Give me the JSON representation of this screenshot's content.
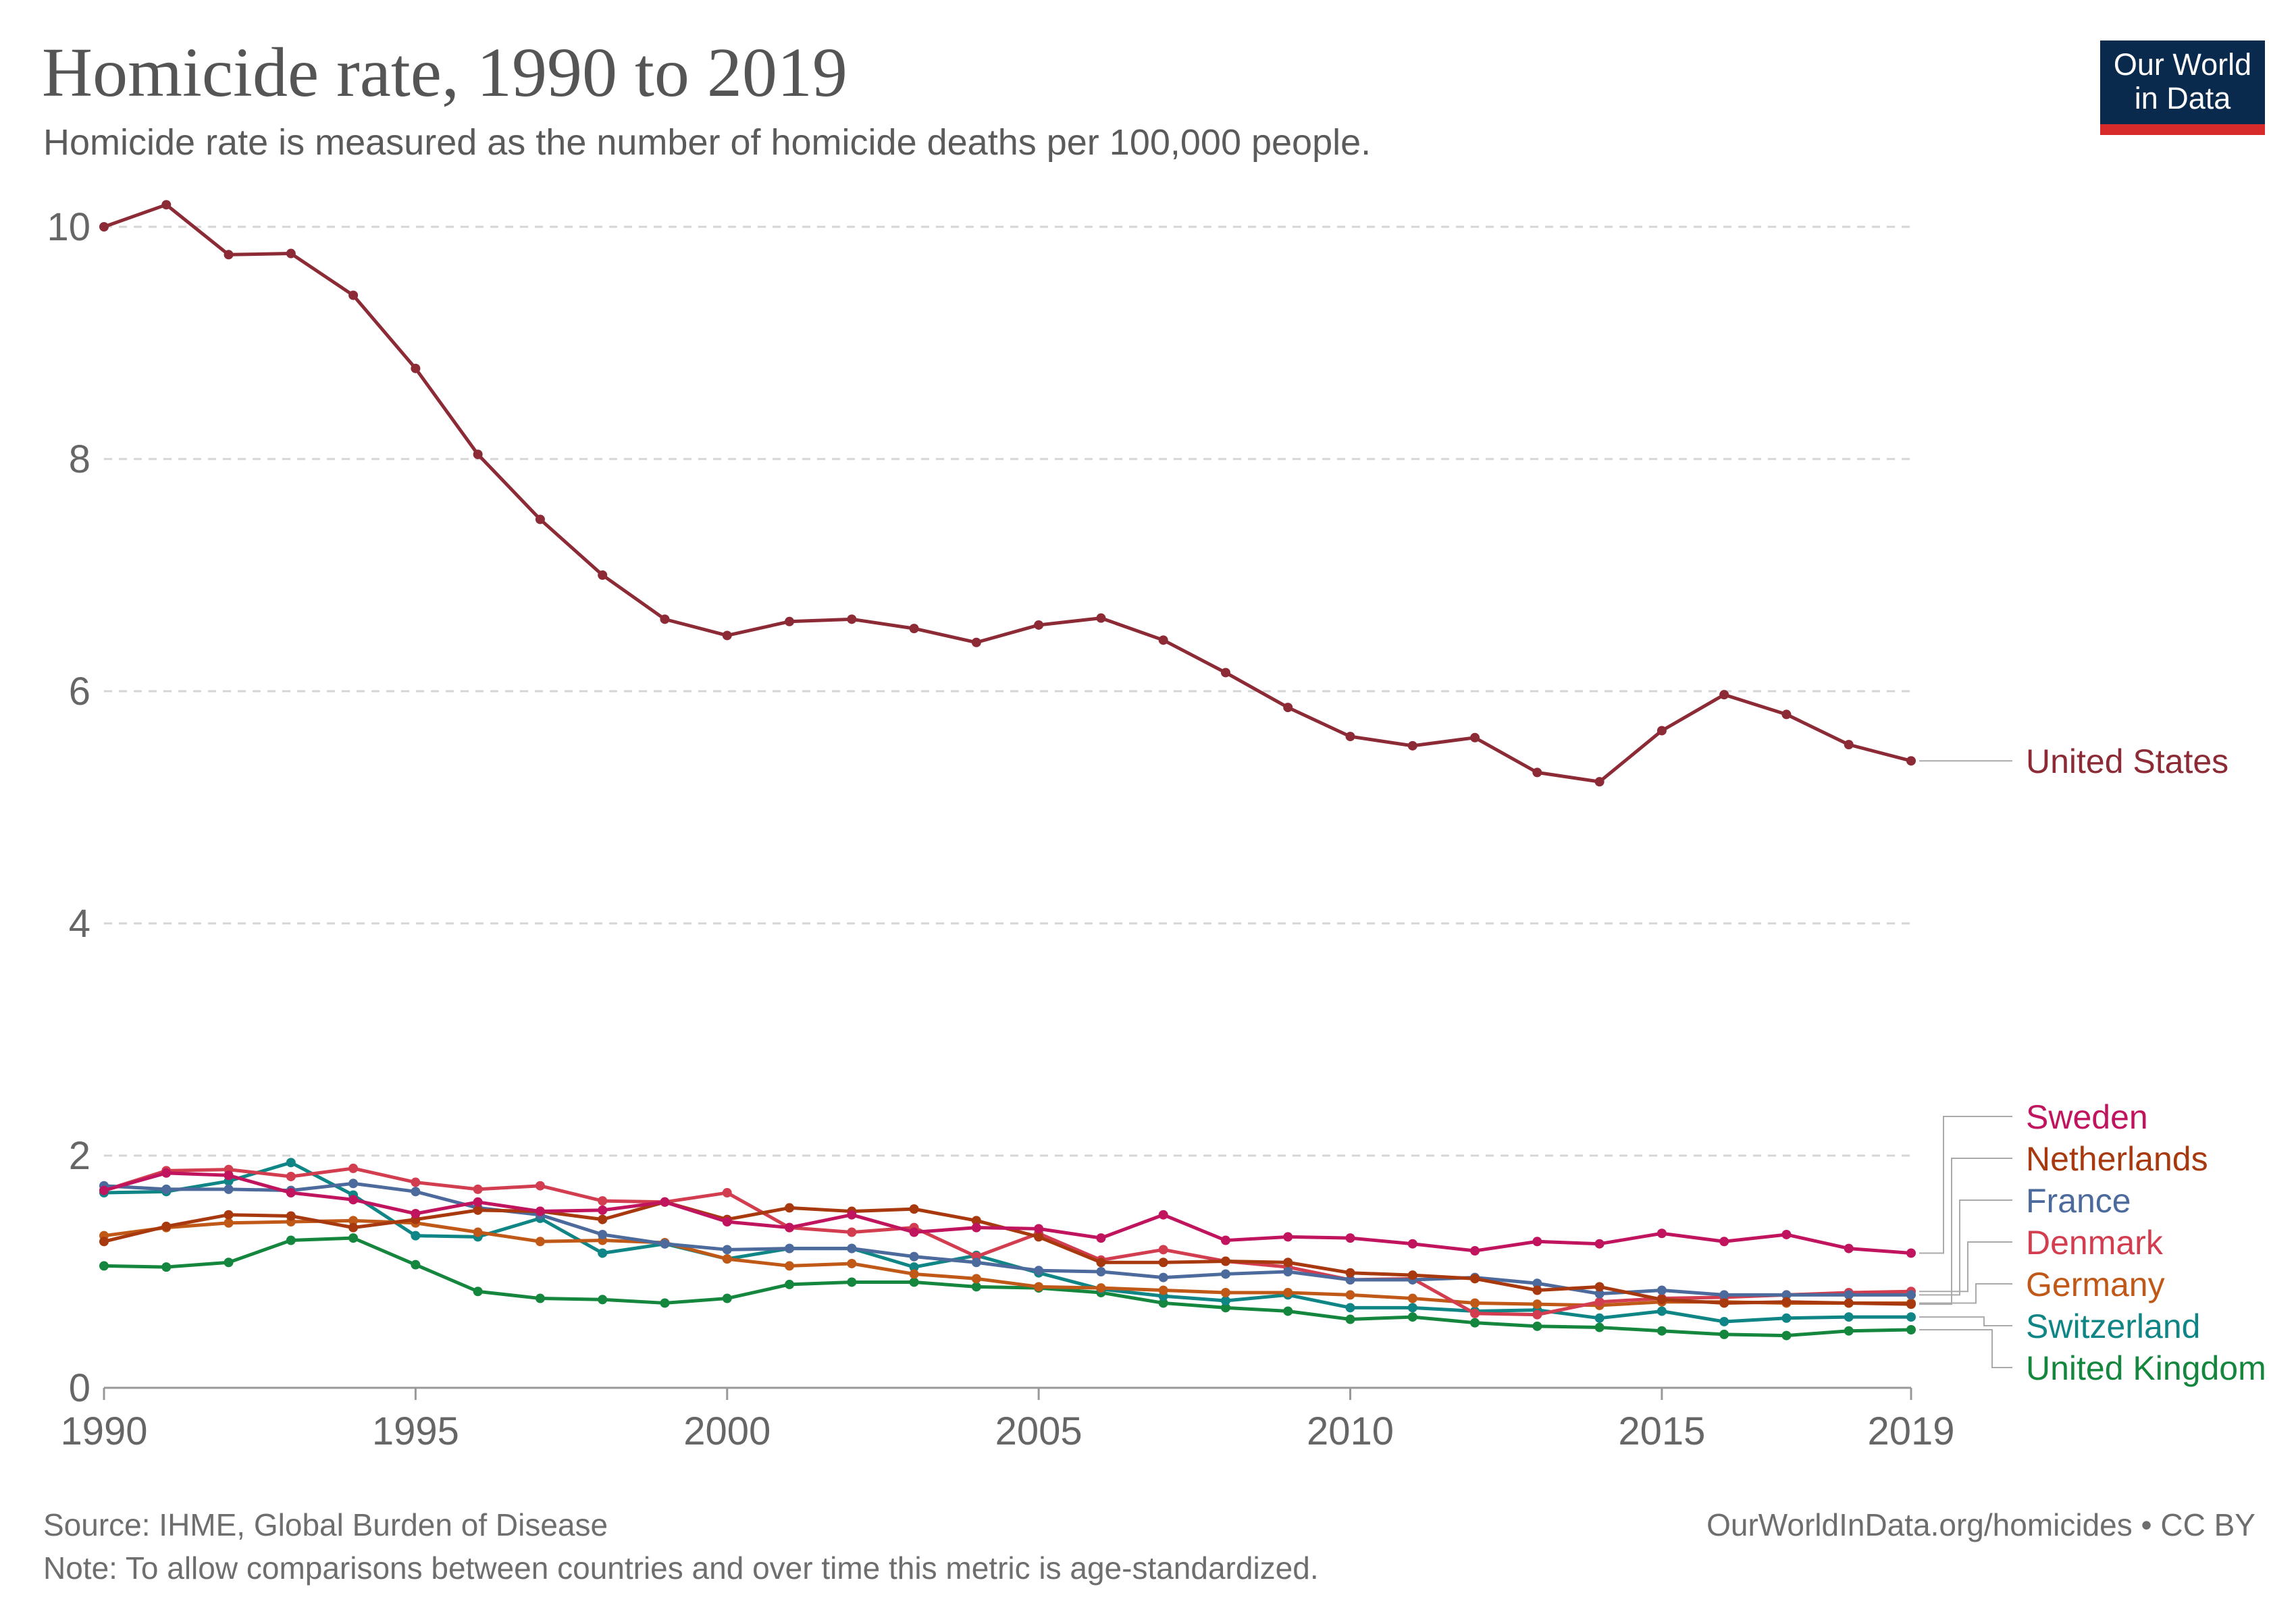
{
  "header": {
    "title": "Homicide rate, 1990 to 2019",
    "subtitle": "Homicide rate is measured as the number of homicide deaths per 100,000 people."
  },
  "logo": {
    "line1": "Our World",
    "line2": "in Data",
    "bg_color": "#0a2a4d",
    "bar_color": "#d72b2b"
  },
  "footer": {
    "source": "Source: IHME, Global Burden of Disease",
    "note": "Note: To allow comparisons between countries and over time this metric is age-standardized.",
    "url": "OurWorldInData.org/homicides • CC BY"
  },
  "chart_data": {
    "type": "line",
    "title": "Homicide rate, 1990 to 2019",
    "xlabel": "",
    "ylabel": "",
    "xlim": [
      1990,
      2019
    ],
    "ylim": [
      0,
      10
    ],
    "x_ticks": [
      1990,
      1995,
      2000,
      2005,
      2010,
      2015,
      2019
    ],
    "y_ticks": [
      0,
      2,
      4,
      6,
      8,
      10
    ],
    "grid": "horizontal dashed",
    "legend": "right, labels at line ends",
    "x": [
      1990,
      1991,
      1992,
      1993,
      1994,
      1995,
      1996,
      1997,
      1998,
      1999,
      2000,
      2001,
      2002,
      2003,
      2004,
      2005,
      2006,
      2007,
      2008,
      2009,
      2010,
      2011,
      2012,
      2013,
      2014,
      2015,
      2016,
      2017,
      2018,
      2019
    ],
    "series": [
      {
        "name": "United States",
        "color": "#8c2a35",
        "values": [
          10.0,
          10.19,
          9.76,
          9.77,
          9.41,
          8.78,
          8.04,
          7.48,
          7.0,
          6.62,
          6.48,
          6.6,
          6.62,
          6.54,
          6.42,
          6.57,
          6.63,
          6.44,
          6.16,
          5.86,
          5.61,
          5.53,
          5.6,
          5.3,
          5.22,
          5.66,
          5.97,
          5.8,
          5.54,
          5.4
        ]
      },
      {
        "name": "Sweden",
        "color": "#c0155e",
        "values": [
          1.7,
          1.85,
          1.83,
          1.68,
          1.62,
          1.5,
          1.6,
          1.52,
          1.53,
          1.6,
          1.43,
          1.38,
          1.49,
          1.34,
          1.38,
          1.37,
          1.29,
          1.49,
          1.27,
          1.3,
          1.29,
          1.24,
          1.18,
          1.26,
          1.24,
          1.33,
          1.26,
          1.32,
          1.2,
          1.16
        ]
      },
      {
        "name": "Netherlands",
        "color": "#a8380d",
        "values": [
          1.26,
          1.39,
          1.49,
          1.48,
          1.38,
          1.45,
          1.53,
          1.52,
          1.45,
          1.6,
          1.45,
          1.55,
          1.52,
          1.54,
          1.44,
          1.3,
          1.08,
          1.08,
          1.09,
          1.08,
          0.99,
          0.97,
          0.94,
          0.84,
          0.87,
          0.76,
          0.73,
          0.74,
          0.73,
          0.72
        ]
      },
      {
        "name": "France",
        "color": "#4c6a9c",
        "values": [
          1.74,
          1.71,
          1.71,
          1.7,
          1.76,
          1.69,
          1.55,
          1.49,
          1.32,
          1.24,
          1.19,
          1.2,
          1.2,
          1.13,
          1.08,
          1.01,
          1.0,
          0.95,
          0.98,
          1.0,
          0.93,
          0.93,
          0.95,
          0.9,
          0.81,
          0.84,
          0.8,
          0.8,
          0.8,
          0.8
        ]
      },
      {
        "name": "Denmark",
        "color": "#d23d4f",
        "values": [
          1.7,
          1.87,
          1.88,
          1.82,
          1.89,
          1.77,
          1.71,
          1.74,
          1.61,
          1.6,
          1.68,
          1.38,
          1.34,
          1.38,
          1.13,
          1.33,
          1.1,
          1.19,
          1.09,
          1.04,
          0.93,
          0.94,
          0.64,
          0.63,
          0.74,
          0.77,
          0.78,
          0.8,
          0.82,
          0.83
        ]
      },
      {
        "name": "Germany",
        "color": "#c05917",
        "values": [
          1.31,
          1.38,
          1.42,
          1.43,
          1.44,
          1.42,
          1.34,
          1.26,
          1.27,
          1.25,
          1.11,
          1.05,
          1.07,
          0.98,
          0.94,
          0.87,
          0.86,
          0.84,
          0.82,
          0.82,
          0.8,
          0.77,
          0.73,
          0.72,
          0.71,
          0.74,
          0.74,
          0.73,
          0.73,
          0.73
        ]
      },
      {
        "name": "Switzerland",
        "color": "#0f8585",
        "values": [
          1.68,
          1.69,
          1.78,
          1.94,
          1.66,
          1.31,
          1.3,
          1.46,
          1.16,
          1.24,
          1.11,
          1.2,
          1.2,
          1.04,
          1.14,
          0.99,
          0.85,
          0.79,
          0.75,
          0.8,
          0.69,
          0.69,
          0.66,
          0.67,
          0.6,
          0.66,
          0.57,
          0.6,
          0.61,
          0.61
        ]
      },
      {
        "name": "United Kingdom",
        "color": "#15863d",
        "values": [
          1.05,
          1.04,
          1.08,
          1.27,
          1.29,
          1.06,
          0.83,
          0.77,
          0.76,
          0.73,
          0.77,
          0.89,
          0.91,
          0.91,
          0.87,
          0.86,
          0.82,
          0.73,
          0.69,
          0.66,
          0.59,
          0.61,
          0.56,
          0.53,
          0.52,
          0.49,
          0.46,
          0.45,
          0.49,
          0.5
        ]
      }
    ]
  }
}
